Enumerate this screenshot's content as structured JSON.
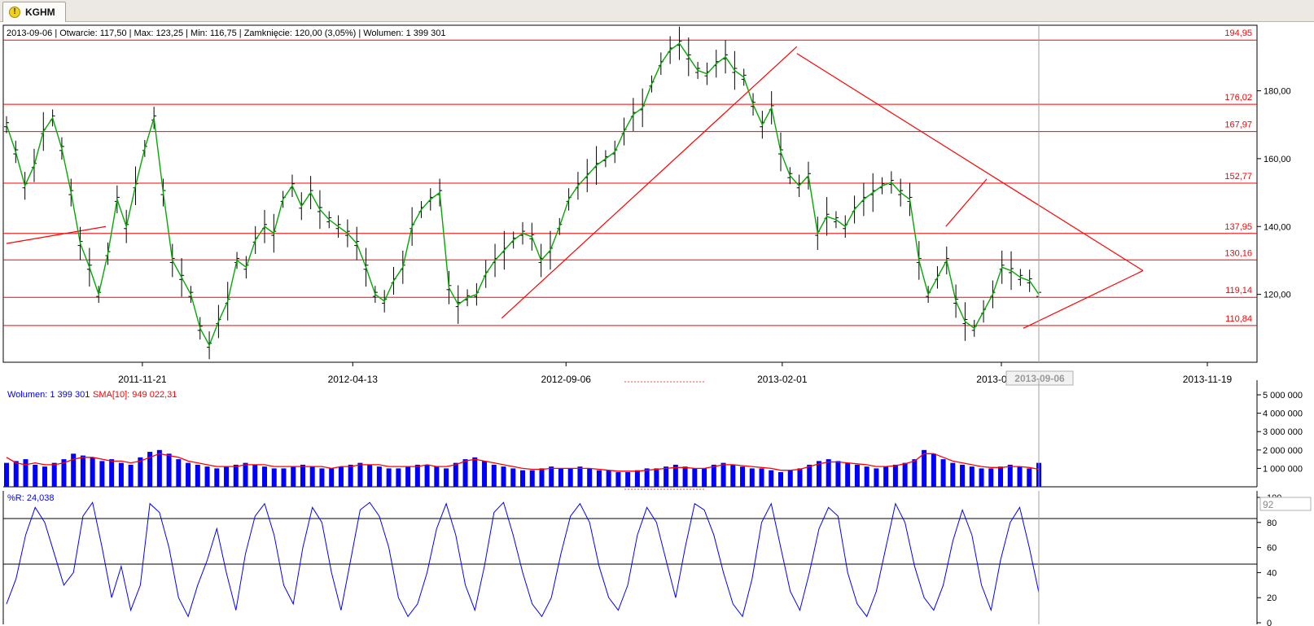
{
  "tab": {
    "label": "KGHM",
    "icon": "warning-icon"
  },
  "price_panel": {
    "info": "2013-09-06 | Otwarcie: 117,50 | Max: 123,25 | Min: 116,75 | Zamknięcie: 120,00 (3,05%)  | Wolumen: 1 399 301"
  },
  "volume_panel": {
    "label": "Wolumen: 1 399 301",
    "sma_label": "SMA[10]: 949 022,31"
  },
  "wr_panel": {
    "label": "%R: 24,038",
    "current": "92"
  },
  "colors": {
    "bars": "#000000",
    "ma": "#00aa00",
    "levels": "#ff0000",
    "volume": "#0000ff",
    "volume_sma": "#ff0000",
    "wr": "#0000ff",
    "cursor": "#a0a0a0"
  },
  "chart_data": [
    {
      "type": "line",
      "series": [
        {
          "values": [
            170,
            162,
            152,
            158,
            168,
            172,
            163,
            150,
            135,
            128,
            120,
            132,
            148,
            140,
            152,
            163,
            172,
            150,
            130,
            125,
            120,
            110,
            105,
            112,
            118,
            130,
            128,
            136,
            140,
            138,
            148,
            152,
            146,
            150,
            145,
            142,
            140,
            138,
            135,
            128,
            120,
            118,
            124,
            128,
            140,
            145,
            148,
            150,
            122,
            117,
            119,
            120,
            126,
            130,
            133,
            136,
            138,
            137,
            130,
            133,
            140,
            148,
            152,
            155,
            158,
            160,
            162,
            168,
            173,
            175,
            182,
            188,
            192,
            194,
            190,
            186,
            185,
            188,
            190,
            186,
            184,
            176,
            170,
            175,
            162,
            155,
            152,
            155,
            138,
            143,
            142,
            140,
            145,
            148,
            150,
            152,
            153,
            150,
            148,
            130,
            120,
            125,
            130,
            118,
            112,
            110,
            115,
            120,
            128,
            127,
            125,
            124,
            120
          ]
        }
      ],
      "ylim": [
        100,
        195
      ],
      "yticks": [
        "120,00",
        "140,00",
        "160,00",
        "180,00"
      ],
      "xticks": [
        "2011-11-21",
        "2012-04-13",
        "2012-09-06",
        "2013-02-01",
        "2013-07-01",
        "2013-11-19"
      ],
      "cursor_label": "2013-09-06",
      "levels": [
        {
          "value": 194.95,
          "label": "194,95"
        },
        {
          "value": 176.02,
          "label": "176,02"
        },
        {
          "value": 167.97,
          "label": "167,97"
        },
        {
          "value": 152.77,
          "label": "152,77"
        },
        {
          "value": 137.95,
          "label": "137,95"
        },
        {
          "value": 130.16,
          "label": "130,16"
        },
        {
          "value": 119.14,
          "label": "119,14"
        },
        {
          "value": 110.84,
          "label": "110,84"
        }
      ]
    },
    {
      "type": "bar",
      "ylim": [
        0,
        5000000
      ],
      "yticks": [
        "1 000 000",
        "2 000 000",
        "3 000 000",
        "4 000 000",
        "5 000 000"
      ],
      "series": [
        {
          "name": "Wolumen",
          "values": [
            1.3,
            1.4,
            1.5,
            1.2,
            1.1,
            1.3,
            1.5,
            1.8,
            1.7,
            1.6,
            1.4,
            1.5,
            1.3,
            1.2,
            1.6,
            1.9,
            2.0,
            1.8,
            1.5,
            1.3,
            1.2,
            1.1,
            1.0,
            1.1,
            1.2,
            1.3,
            1.2,
            1.1,
            1.0,
            1.0,
            1.1,
            1.2,
            1.1,
            1.0,
            1.0,
            1.1,
            1.2,
            1.3,
            1.2,
            1.1,
            1.0,
            1.0,
            1.1,
            1.2,
            1.2,
            1.1,
            1.0,
            1.3,
            1.5,
            1.6,
            1.4,
            1.2,
            1.1,
            1.0,
            0.9,
            0.9,
            1.0,
            1.1,
            1.0,
            1.0,
            1.1,
            1.0,
            0.9,
            0.9,
            0.8,
            0.8,
            0.9,
            1.0,
            1.0,
            1.1,
            1.2,
            1.1,
            1.0,
            1.0,
            1.2,
            1.3,
            1.2,
            1.1,
            1.0,
            1.0,
            0.9,
            0.8,
            0.9,
            1.0,
            1.2,
            1.4,
            1.5,
            1.4,
            1.3,
            1.2,
            1.1,
            1.0,
            1.1,
            1.2,
            1.3,
            1.5,
            2.0,
            1.8,
            1.5,
            1.3,
            1.2,
            1.1,
            1.0,
            1.0,
            1.1,
            1.2,
            1.1,
            1.0,
            1.3
          ]
        },
        {
          "name": "SMA[10]",
          "values": [
            1.6,
            1.3,
            1.2,
            1.3,
            1.2,
            1.2,
            1.3,
            1.5,
            1.6,
            1.6,
            1.5,
            1.4,
            1.4,
            1.3,
            1.4,
            1.6,
            1.8,
            1.7,
            1.6,
            1.4,
            1.3,
            1.2,
            1.1,
            1.1,
            1.1,
            1.2,
            1.2,
            1.2,
            1.1,
            1.1,
            1.1,
            1.1,
            1.1,
            1.1,
            1.0,
            1.1,
            1.1,
            1.2,
            1.2,
            1.2,
            1.1,
            1.1,
            1.1,
            1.1,
            1.2,
            1.1,
            1.1,
            1.2,
            1.4,
            1.5,
            1.4,
            1.3,
            1.2,
            1.1,
            1.0,
            0.95,
            0.95,
            1.0,
            1.0,
            1.0,
            1.0,
            1.0,
            0.95,
            0.9,
            0.85,
            0.85,
            0.85,
            0.9,
            0.95,
            1.0,
            1.05,
            1.05,
            1.0,
            1.0,
            1.1,
            1.2,
            1.2,
            1.15,
            1.1,
            1.05,
            1.0,
            0.9,
            0.9,
            0.95,
            1.1,
            1.25,
            1.35,
            1.35,
            1.3,
            1.25,
            1.2,
            1.1,
            1.1,
            1.15,
            1.25,
            1.4,
            1.8,
            1.8,
            1.6,
            1.4,
            1.3,
            1.2,
            1.1,
            1.05,
            1.05,
            1.1,
            1.1,
            1.05,
            0.95
          ]
        }
      ]
    },
    {
      "type": "line",
      "ylim": [
        0,
        100
      ],
      "yticks": [
        "0",
        "20",
        "40",
        "60",
        "80",
        "100"
      ],
      "series": [
        {
          "name": "%R",
          "values": [
            15,
            35,
            70,
            92,
            80,
            55,
            30,
            40,
            85,
            96,
            60,
            20,
            45,
            10,
            30,
            95,
            88,
            60,
            20,
            5,
            30,
            50,
            75,
            40,
            10,
            55,
            85,
            95,
            70,
            30,
            15,
            60,
            92,
            80,
            40,
            10,
            50,
            90,
            96,
            85,
            60,
            20,
            5,
            15,
            40,
            75,
            95,
            70,
            30,
            10,
            45,
            88,
            96,
            70,
            40,
            15,
            5,
            20,
            55,
            85,
            95,
            80,
            45,
            20,
            10,
            30,
            70,
            92,
            80,
            50,
            20,
            60,
            95,
            90,
            70,
            40,
            15,
            5,
            35,
            80,
            95,
            60,
            25,
            10,
            40,
            75,
            92,
            85,
            40,
            15,
            5,
            25,
            60,
            95,
            80,
            45,
            20,
            10,
            30,
            65,
            90,
            70,
            30,
            10,
            50,
            80,
            92,
            60,
            24
          ]
        }
      ]
    }
  ]
}
